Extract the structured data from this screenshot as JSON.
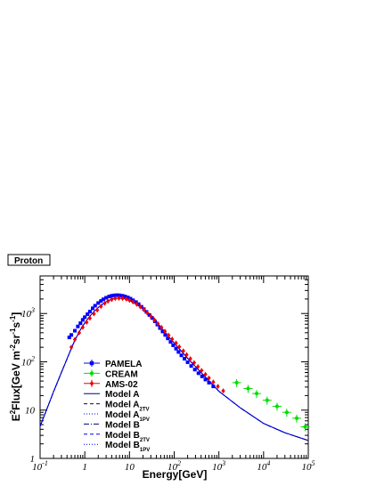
{
  "chart_data": {
    "type": "scatter",
    "title": "Proton",
    "xlabel": "Energy[GeV]",
    "ylabel": {
      "base": "E",
      "sup1": "2",
      "mid": "Flux[GeV m",
      "sup2": "-2",
      "mid2": "sr",
      "sup3": "-1",
      "mid3": "s",
      "sup4": "-1",
      "end": "]"
    },
    "xscale": "log",
    "yscale": "log",
    "xlim": [
      0.1,
      100000
    ],
    "ylim": [
      1,
      6000
    ],
    "x_ticks": [
      {
        "value": 0.1,
        "base": "10",
        "exp": "-1"
      },
      {
        "value": 1,
        "base": "1",
        "exp": ""
      },
      {
        "value": 10,
        "base": "10",
        "exp": ""
      },
      {
        "value": 100,
        "base": "10",
        "exp": "2"
      },
      {
        "value": 1000,
        "base": "10",
        "exp": "3"
      },
      {
        "value": 10000,
        "base": "10",
        "exp": "4"
      },
      {
        "value": 100000,
        "base": "10",
        "exp": "5"
      }
    ],
    "y_ticks": [
      {
        "value": 1,
        "base": "1",
        "exp": ""
      },
      {
        "value": 10,
        "base": "10",
        "exp": ""
      },
      {
        "value": 100,
        "base": "10",
        "exp": "2"
      },
      {
        "value": 1000,
        "base": "10",
        "exp": "3"
      }
    ],
    "legend_position": "lower-left",
    "series": [
      {
        "name": "PAMELA",
        "color": "#0000ff",
        "marker": "square",
        "x": [
          0.45,
          0.5,
          0.6,
          0.7,
          0.8,
          0.9,
          1.0,
          1.15,
          1.3,
          1.5,
          1.7,
          2.0,
          2.3,
          2.6,
          3.0,
          3.5,
          4.0,
          4.6,
          5.3,
          6.0,
          7.0,
          8.0,
          9.2,
          10.5,
          12,
          14,
          16,
          18.5,
          21,
          24,
          28,
          32,
          37,
          42,
          48,
          55,
          63,
          72,
          83,
          95,
          110,
          125,
          145,
          170,
          200,
          240,
          290,
          350,
          420,
          500,
          600,
          750
        ],
        "y": [
          320,
          360,
          440,
          540,
          630,
          740,
          840,
          970,
          1100,
          1280,
          1450,
          1650,
          1820,
          1970,
          2120,
          2250,
          2330,
          2380,
          2400,
          2380,
          2330,
          2250,
          2150,
          2030,
          1880,
          1720,
          1560,
          1380,
          1230,
          1080,
          930,
          810,
          690,
          590,
          500,
          425,
          360,
          305,
          258,
          220,
          187,
          160,
          136,
          116,
          98,
          82,
          69,
          58,
          50,
          43,
          37,
          31
        ]
      },
      {
        "name": "CREAM",
        "color": "#00dd00",
        "marker": "circle",
        "x": [
          2500,
          4500,
          7000,
          12000,
          20000,
          33000,
          55000,
          85000
        ],
        "y": [
          37,
          28,
          22,
          16,
          12,
          9,
          6.8,
          4.5
        ]
      },
      {
        "name": "AMS-02",
        "color": "#ee0000",
        "marker": "diamond",
        "x": [
          0.5,
          0.6,
          0.75,
          0.9,
          1.1,
          1.3,
          1.6,
          1.9,
          2.3,
          2.8,
          3.3,
          4.0,
          4.8,
          5.8,
          7.0,
          8.5,
          10,
          12,
          14.5,
          17.5,
          21,
          25,
          30,
          36,
          43,
          52,
          62,
          75,
          90,
          110,
          130,
          160,
          190,
          230,
          280,
          340,
          410,
          500,
          600,
          750,
          950,
          1250
        ],
        "y": [
          200,
          290,
          400,
          520,
          660,
          800,
          990,
          1180,
          1400,
          1630,
          1800,
          1950,
          2050,
          2080,
          2060,
          1990,
          1880,
          1730,
          1560,
          1380,
          1200,
          1030,
          880,
          740,
          620,
          515,
          428,
          355,
          295,
          245,
          205,
          168,
          140,
          116,
          96,
          79,
          66,
          55,
          46,
          38,
          31,
          25
        ]
      },
      {
        "name": "Model A",
        "color": "#000080",
        "line": "solid"
      },
      {
        "name": "Model A",
        "sub": "2TV",
        "color": "#000080",
        "line": "dashed"
      },
      {
        "name": "Model A",
        "sub": "1PV",
        "color": "#0000ff",
        "line": "dotted"
      },
      {
        "name": "Model B",
        "color": "#000080",
        "line": "dashdot"
      },
      {
        "name": "Model B",
        "sub": "2TV",
        "color": "#0000ff",
        "line": "dashed"
      },
      {
        "name": "Model B",
        "sub": "1PV",
        "color": "#0000ff",
        "line": "dotted"
      }
    ],
    "model_curve": {
      "x": [
        0.1,
        0.15,
        0.2,
        0.3,
        0.45,
        0.6,
        0.8,
        1.0,
        1.3,
        1.7,
        2.2,
        3.0,
        4.0,
        5.0,
        6.0,
        8.0,
        10,
        14,
        20,
        30,
        45,
        70,
        100,
        200,
        500,
        1000,
        3000,
        10000,
        30000,
        100000
      ],
      "y": [
        4.6,
        12,
        24,
        60,
        150,
        280,
        460,
        640,
        880,
        1160,
        1430,
        1760,
        1990,
        2080,
        2090,
        2010,
        1880,
        1590,
        1250,
        880,
        590,
        360,
        245,
        118,
        48,
        24.5,
        11.2,
        5.3,
        3.4,
        2.35
      ]
    }
  }
}
